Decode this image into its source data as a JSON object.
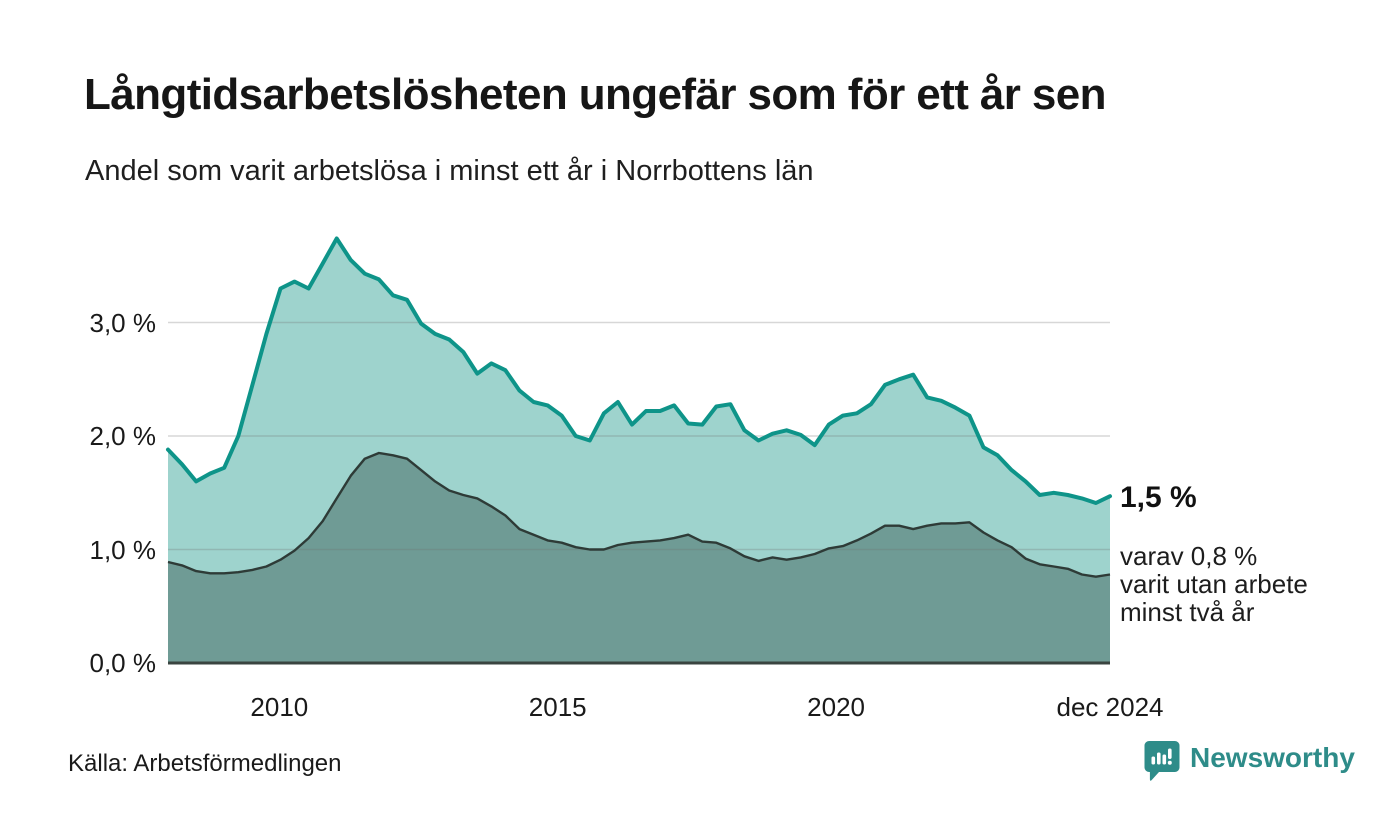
{
  "header": {
    "title": "Långtidsarbetslösheten ungefär som för ett år sen",
    "subtitle": "Andel som varit arbetslösa i minst ett år i Norrbottens län"
  },
  "annotations": {
    "end_value": "1,5 %",
    "note_lines": [
      "varav 0,8 %",
      "varit utan arbete",
      "minst två år"
    ]
  },
  "footer": {
    "source": "Källa: Arbetsförmedlingen",
    "brand": "Newsworthy"
  },
  "colors": {
    "line_one_year": "#0e9489",
    "fill_one_year": "#9ed3cd",
    "line_two_year": "#2e3b37",
    "fill_two_year": "#6f9b95",
    "gridline": "#e2e2e2",
    "axis_baseline": "#3a4440",
    "brand_teal": "#2e8c89",
    "text": "#1a1a1a"
  },
  "chart_data": {
    "type": "area",
    "title": "Långtidsarbetslösheten ungefär som för ett år sen",
    "subtitle": "Andel som varit arbetslösa i minst ett år i Norrbottens län",
    "unit": "%",
    "x_start_year": 2008,
    "x_end_year_fraction": 2024.92,
    "x_end_label": "dec 2024",
    "interval": "quarterly",
    "ylim": [
      0,
      4.0
    ],
    "grid": true,
    "legend": "none",
    "y_ticks": [
      {
        "label": "0,0 %",
        "value": 0
      },
      {
        "label": "1,0 %",
        "value": 1
      },
      {
        "label": "2,0 %",
        "value": 2
      },
      {
        "label": "3,0 %",
        "value": 3
      }
    ],
    "x_ticks": [
      {
        "label": "2010",
        "year": 2010
      },
      {
        "label": "2015",
        "year": 2015
      },
      {
        "label": "2020",
        "year": 2020
      },
      {
        "label": "dec 2024",
        "year": 2024.92
      }
    ],
    "series": [
      {
        "name": "Andel arbetslösa minst ett år",
        "end_label": "1,5 %",
        "end_value": 1.5,
        "values": [
          1.88,
          1.75,
          1.6,
          1.67,
          1.72,
          2.0,
          2.45,
          2.9,
          3.3,
          3.36,
          3.3,
          3.52,
          3.74,
          3.55,
          3.43,
          3.38,
          3.24,
          3.2,
          2.99,
          2.9,
          2.85,
          2.74,
          2.55,
          2.64,
          2.58,
          2.4,
          2.3,
          2.27,
          2.18,
          2.0,
          1.96,
          2.2,
          2.3,
          2.1,
          2.22,
          2.22,
          2.27,
          2.11,
          2.1,
          2.26,
          2.28,
          2.05,
          1.96,
          2.02,
          2.05,
          2.01,
          1.92,
          2.1,
          2.18,
          2.2,
          2.28,
          2.45,
          2.5,
          2.54,
          2.34,
          2.31,
          2.25,
          2.18,
          1.9,
          1.83,
          1.7,
          1.6,
          1.48,
          1.5,
          1.48,
          1.45,
          1.41,
          1.47
        ]
      },
      {
        "name": "Andel arbetslösa minst två år",
        "end_label": "0,8 %",
        "end_value": 0.8,
        "values": [
          0.89,
          0.86,
          0.81,
          0.79,
          0.79,
          0.8,
          0.82,
          0.85,
          0.91,
          0.99,
          1.1,
          1.25,
          1.45,
          1.65,
          1.8,
          1.85,
          1.83,
          1.8,
          1.7,
          1.6,
          1.52,
          1.48,
          1.45,
          1.38,
          1.3,
          1.18,
          1.13,
          1.08,
          1.06,
          1.02,
          1.0,
          1.0,
          1.04,
          1.06,
          1.07,
          1.08,
          1.1,
          1.13,
          1.07,
          1.06,
          1.01,
          0.94,
          0.9,
          0.93,
          0.91,
          0.93,
          0.96,
          1.01,
          1.03,
          1.08,
          1.14,
          1.21,
          1.21,
          1.18,
          1.21,
          1.23,
          1.23,
          1.24,
          1.15,
          1.08,
          1.02,
          0.92,
          0.87,
          0.85,
          0.83,
          0.78,
          0.76,
          0.78
        ]
      }
    ]
  }
}
